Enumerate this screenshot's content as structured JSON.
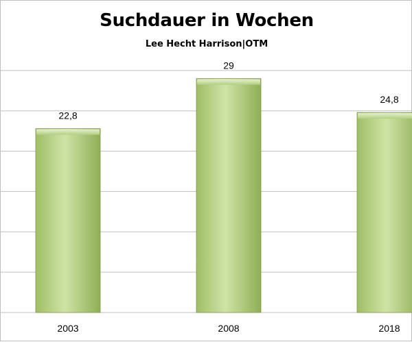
{
  "chart_data": {
    "type": "bar",
    "title": "Suchdauer in Wochen",
    "subtitle": "Lee Hecht Harrison|OTM",
    "categories": [
      "2003",
      "2008",
      "2018"
    ],
    "values": [
      22.8,
      29,
      24.8
    ],
    "value_labels": [
      "22,8",
      "29",
      "24,8"
    ],
    "ylim": [
      0,
      35
    ],
    "grid": true,
    "legend": "none",
    "colors": {
      "bar": "#b3cf7e",
      "bar_light": "#dbe9bd",
      "bar_dark": "#8fae55",
      "grid": "#bfbfbf"
    }
  }
}
